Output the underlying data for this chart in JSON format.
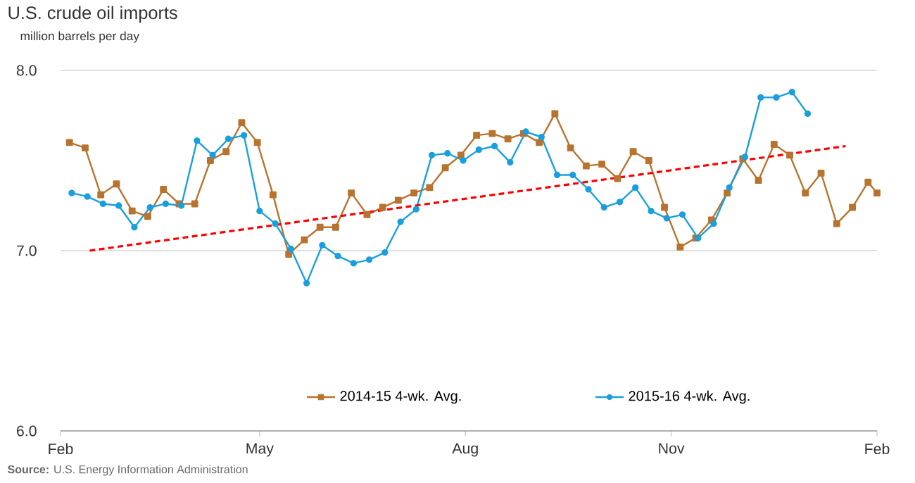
{
  "chart_data": {
    "type": "line",
    "title": "U.S. crude oil imports",
    "ylabel": "million barrels per day",
    "annotations": [
      "**Source:** U.S. Energy Information Administration"
    ],
    "xlim": [
      "2015-02-01",
      "2016-02-01"
    ],
    "xticks": [
      {
        "value": "2015-02-01",
        "label": "Feb"
      },
      {
        "value": "2015-05-01",
        "label": "May"
      },
      {
        "value": "2015-08-01",
        "label": "Aug"
      },
      {
        "value": "2015-11-01",
        "label": "Nov"
      },
      {
        "value": "2016-02-01",
        "label": "Feb"
      }
    ],
    "ylim": [
      6,
      8
    ],
    "yticks": [
      {
        "value": 6,
        "label": "6.0"
      },
      {
        "value": 7,
        "label": "7.0"
      },
      {
        "value": 8,
        "label": "8.0"
      }
    ],
    "grid": "y",
    "legend": "bottom",
    "series": [
      {
        "name": "2014-15  4-wk. Avg.",
        "color": "#b8732e",
        "marker": "square",
        "x": [
          "2015-02-05",
          "2015-02-12",
          "2015-02-19",
          "2015-02-26",
          "2015-03-05",
          "2015-03-12",
          "2015-03-19",
          "2015-03-26",
          "2015-04-02",
          "2015-04-09",
          "2015-04-16",
          "2015-04-23",
          "2015-04-30",
          "2015-05-07",
          "2015-05-14",
          "2015-05-21",
          "2015-05-28",
          "2015-06-04",
          "2015-06-11",
          "2015-06-18",
          "2015-06-25",
          "2015-07-02",
          "2015-07-09",
          "2015-07-16",
          "2015-07-23",
          "2015-07-30",
          "2015-08-06",
          "2015-08-13",
          "2015-08-20",
          "2015-08-27",
          "2015-09-03",
          "2015-09-10",
          "2015-09-17",
          "2015-09-24",
          "2015-10-01",
          "2015-10-08",
          "2015-10-15",
          "2015-10-22",
          "2015-10-29",
          "2015-11-05",
          "2015-11-12",
          "2015-11-19",
          "2015-11-26",
          "2015-12-03",
          "2015-12-10",
          "2015-12-17",
          "2015-12-24",
          "2015-12-31",
          "2016-01-07",
          "2016-01-14",
          "2016-01-21",
          "2016-01-28",
          "2016-02-01"
        ],
        "values": [
          7.6,
          7.57,
          7.31,
          7.37,
          7.22,
          7.19,
          7.34,
          7.26,
          7.26,
          7.5,
          7.55,
          7.71,
          7.6,
          7.31,
          6.98,
          7.06,
          7.13,
          7.13,
          7.32,
          7.2,
          7.24,
          7.28,
          7.32,
          7.35,
          7.46,
          7.53,
          7.64,
          7.65,
          7.62,
          7.65,
          7.6,
          7.76,
          7.57,
          7.47,
          7.48,
          7.4,
          7.55,
          7.5,
          7.24,
          7.02,
          7.07,
          7.17,
          7.32,
          7.51,
          7.39,
          7.59,
          7.53,
          7.32,
          7.43,
          7.15,
          7.24,
          7.38,
          7.32
        ]
      },
      {
        "name": "2015-16  4-wk. Avg.",
        "color": "#1a9fde",
        "marker": "circle",
        "x": [
          "2015-02-06",
          "2015-02-13",
          "2015-02-20",
          "2015-02-27",
          "2015-03-06",
          "2015-03-13",
          "2015-03-20",
          "2015-03-27",
          "2015-04-03",
          "2015-04-10",
          "2015-04-17",
          "2015-04-24",
          "2015-05-01",
          "2015-05-08",
          "2015-05-15",
          "2015-05-22",
          "2015-05-29",
          "2015-06-05",
          "2015-06-12",
          "2015-06-19",
          "2015-06-26",
          "2015-07-03",
          "2015-07-10",
          "2015-07-17",
          "2015-07-24",
          "2015-07-31",
          "2015-08-07",
          "2015-08-14",
          "2015-08-21",
          "2015-08-28",
          "2015-09-04",
          "2015-09-11",
          "2015-09-18",
          "2015-09-25",
          "2015-10-02",
          "2015-10-09",
          "2015-10-16",
          "2015-10-23",
          "2015-10-30",
          "2015-11-06",
          "2015-11-13",
          "2015-11-20",
          "2015-11-27",
          "2015-12-04",
          "2015-12-11",
          "2015-12-18",
          "2015-12-25",
          "2016-01-01"
        ],
        "values": [
          7.32,
          7.3,
          7.26,
          7.25,
          7.13,
          7.24,
          7.26,
          7.25,
          7.61,
          7.53,
          7.62,
          7.64,
          7.22,
          7.15,
          7.01,
          6.82,
          7.03,
          6.97,
          6.93,
          6.95,
          6.99,
          7.16,
          7.23,
          7.53,
          7.54,
          7.5,
          7.56,
          7.58,
          7.49,
          7.66,
          7.63,
          7.42,
          7.42,
          7.34,
          7.24,
          7.27,
          7.35,
          7.22,
          7.18,
          7.2,
          7.07,
          7.15,
          7.35,
          7.52,
          7.85,
          7.85,
          7.88,
          7.76
        ]
      },
      {
        "color": "#ff0000",
        "marker": "none",
        "line_style": "dashed",
        "x": [
          "2015-02-14",
          "2016-01-18"
        ],
        "values": [
          7.0,
          7.58
        ]
      }
    ]
  }
}
